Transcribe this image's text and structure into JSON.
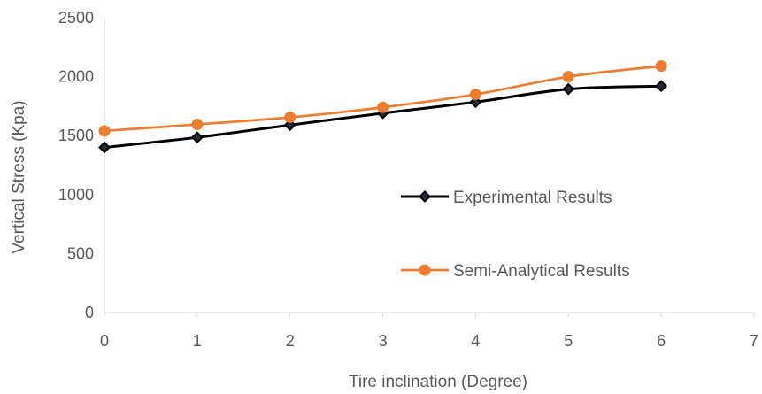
{
  "chart_data": {
    "type": "line",
    "title": "",
    "xlabel": "Tire inclination (Degree)",
    "ylabel": "Vertical Stress (Kpa)",
    "xlim": [
      0,
      7
    ],
    "ylim": [
      0,
      2500
    ],
    "x_ticks": [
      0,
      1,
      2,
      3,
      4,
      5,
      6,
      7
    ],
    "y_ticks": [
      0,
      500,
      1000,
      1500,
      2000,
      2500
    ],
    "grid": false,
    "legend_position": "right",
    "x": [
      0,
      1,
      2,
      3,
      4,
      5,
      6
    ],
    "series": [
      {
        "name": "Experimental Results",
        "values": [
          1400,
          1485,
          1590,
          1690,
          1785,
          1895,
          1920
        ],
        "color": "#000000",
        "marker": "diamond"
      },
      {
        "name": "Semi-Analytical Results",
        "values": [
          1540,
          1595,
          1655,
          1740,
          1850,
          2000,
          2090
        ],
        "color": "#ED7D31",
        "marker": "circle"
      }
    ]
  }
}
